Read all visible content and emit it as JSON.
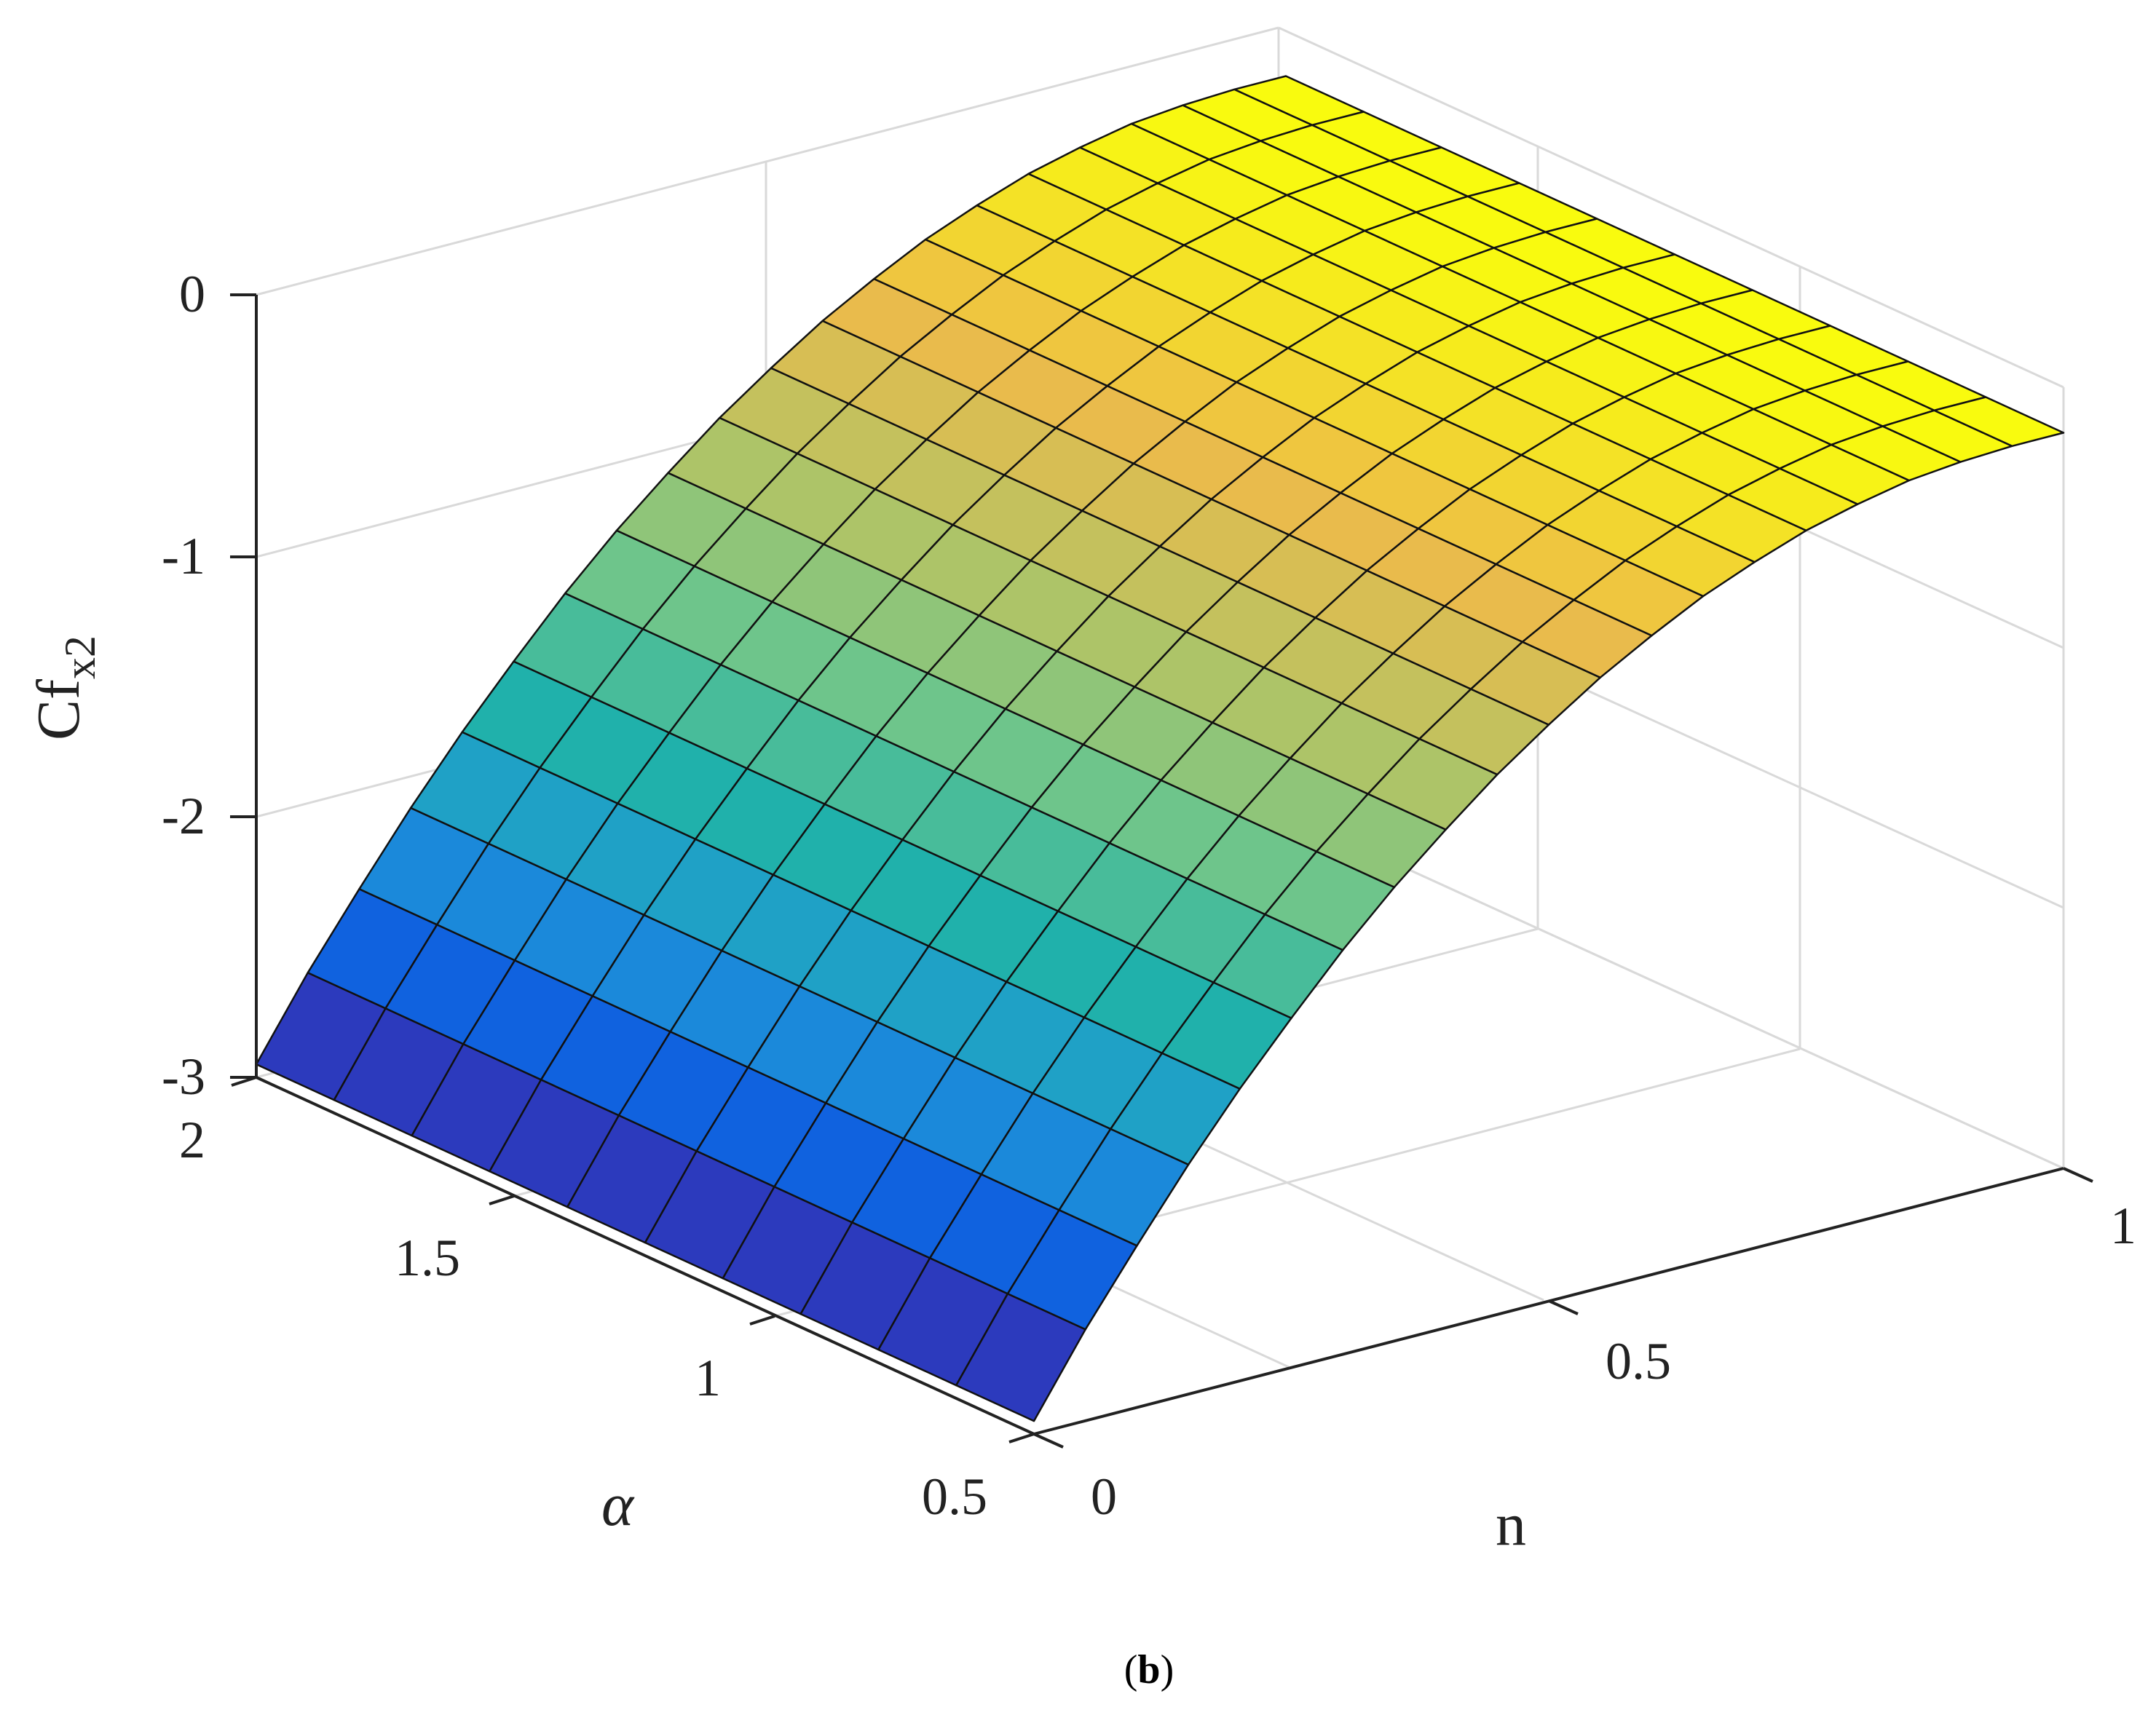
{
  "chart_data": {
    "type": "surface",
    "xlabel": "n",
    "ylabel": "α",
    "zlabel_base": "Cf",
    "zlabel_sub": "x2",
    "xlim": [
      0,
      1
    ],
    "ylim": [
      0.5,
      2
    ],
    "zlim": [
      -3,
      0
    ],
    "x_ticks": [
      "0",
      "0.5",
      "1"
    ],
    "y_ticks": [
      "0.5",
      "1",
      "1.5",
      "2"
    ],
    "z_ticks": [
      "0",
      "-1",
      "-2",
      "-3"
    ],
    "grid": true,
    "colormap": [
      "#3e26a8",
      "#0f5ce0",
      "#1e96d8",
      "#20b2aa",
      "#6cc58c",
      "#b4c464",
      "#edba4a",
      "#f9fb0e"
    ],
    "surface": {
      "n_values": [
        0,
        0.05,
        0.1,
        0.15,
        0.2,
        0.25,
        0.3,
        0.35,
        0.4,
        0.45,
        0.5,
        0.55,
        0.6,
        0.65,
        0.7,
        0.75,
        0.8,
        0.85,
        0.9,
        0.95,
        1
      ],
      "alpha_values": [
        0.5,
        0.65,
        0.8,
        0.95,
        1.1,
        1.25,
        1.4,
        1.55,
        1.7,
        1.85,
        2
      ],
      "cf_x2": [
        [
          -2.95,
          -2.95,
          -2.95,
          -2.95,
          -2.95,
          -2.95,
          -2.95,
          -2.95,
          -2.95,
          -2.95,
          -2.95
        ],
        [
          -2.65,
          -2.65,
          -2.65,
          -2.65,
          -2.65,
          -2.65,
          -2.65,
          -2.65,
          -2.65,
          -2.65,
          -2.65
        ],
        [
          -2.38,
          -2.38,
          -2.38,
          -2.38,
          -2.38,
          -2.38,
          -2.38,
          -2.38,
          -2.38,
          -2.38,
          -2.38
        ],
        [
          -2.12,
          -2.12,
          -2.12,
          -2.12,
          -2.12,
          -2.12,
          -2.12,
          -2.12,
          -2.12,
          -2.12,
          -2.12
        ],
        [
          -1.88,
          -1.88,
          -1.88,
          -1.88,
          -1.88,
          -1.88,
          -1.88,
          -1.88,
          -1.88,
          -1.88,
          -1.88
        ],
        [
          -1.66,
          -1.66,
          -1.66,
          -1.66,
          -1.66,
          -1.66,
          -1.66,
          -1.66,
          -1.66,
          -1.66,
          -1.66
        ],
        [
          -1.45,
          -1.45,
          -1.45,
          -1.45,
          -1.45,
          -1.45,
          -1.45,
          -1.45,
          -1.45,
          -1.45,
          -1.45
        ],
        [
          -1.26,
          -1.26,
          -1.26,
          -1.26,
          -1.26,
          -1.26,
          -1.26,
          -1.26,
          -1.26,
          -1.26,
          -1.26
        ],
        [
          -1.09,
          -1.09,
          -1.09,
          -1.09,
          -1.09,
          -1.09,
          -1.09,
          -1.09,
          -1.09,
          -1.09,
          -1.09
        ],
        [
          -0.93,
          -0.93,
          -0.93,
          -0.93,
          -0.93,
          -0.93,
          -0.93,
          -0.93,
          -0.93,
          -0.93,
          -0.93
        ],
        [
          -0.79,
          -0.79,
          -0.79,
          -0.79,
          -0.79,
          -0.79,
          -0.79,
          -0.79,
          -0.79,
          -0.79,
          -0.79
        ],
        [
          -0.66,
          -0.66,
          -0.66,
          -0.66,
          -0.66,
          -0.66,
          -0.66,
          -0.66,
          -0.66,
          -0.66,
          -0.66
        ],
        [
          -0.55,
          -0.55,
          -0.55,
          -0.55,
          -0.55,
          -0.55,
          -0.55,
          -0.55,
          -0.55,
          -0.55,
          -0.55
        ],
        [
          -0.45,
          -0.45,
          -0.45,
          -0.45,
          -0.45,
          -0.45,
          -0.45,
          -0.45,
          -0.45,
          -0.45,
          -0.45
        ],
        [
          -0.37,
          -0.37,
          -0.37,
          -0.37,
          -0.37,
          -0.37,
          -0.37,
          -0.37,
          -0.37,
          -0.37,
          -0.37
        ],
        [
          -0.3,
          -0.3,
          -0.3,
          -0.3,
          -0.3,
          -0.3,
          -0.3,
          -0.3,
          -0.3,
          -0.3,
          -0.3
        ],
        [
          -0.25,
          -0.25,
          -0.25,
          -0.25,
          -0.25,
          -0.25,
          -0.25,
          -0.25,
          -0.25,
          -0.25,
          -0.25
        ],
        [
          -0.21,
          -0.21,
          -0.21,
          -0.21,
          -0.21,
          -0.21,
          -0.21,
          -0.21,
          -0.21,
          -0.21,
          -0.21
        ],
        [
          -0.19,
          -0.19,
          -0.19,
          -0.19,
          -0.19,
          -0.19,
          -0.19,
          -0.19,
          -0.19,
          -0.19,
          -0.19
        ],
        [
          -0.18,
          -0.18,
          -0.18,
          -0.18,
          -0.18,
          -0.18,
          -0.18,
          -0.18,
          -0.18,
          -0.18,
          -0.18
        ],
        [
          -0.18,
          -0.18,
          -0.18,
          -0.18,
          -0.18,
          -0.18,
          -0.18,
          -0.18,
          -0.18,
          -0.18,
          -0.18
        ]
      ]
    }
  },
  "caption": {
    "open": "(",
    "letter": "b",
    "close": ")"
  }
}
